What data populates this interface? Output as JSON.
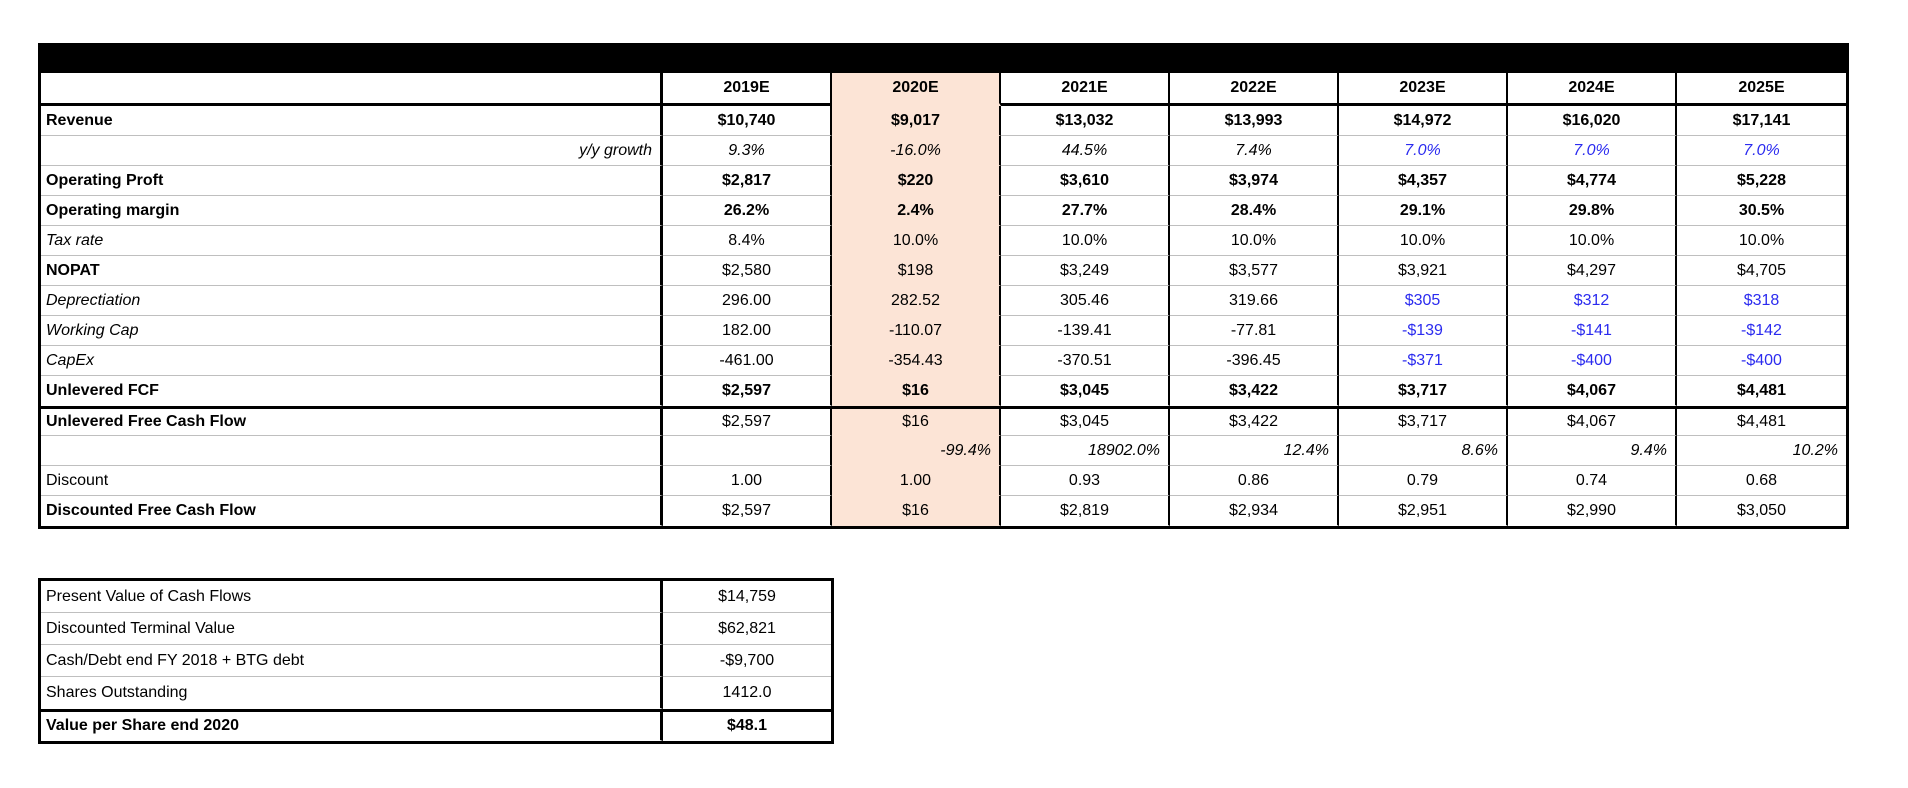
{
  "title_bar": {
    "text": ""
  },
  "colors": {
    "highlight_column_fill": "#FCE4D6",
    "assumption_text_blue": "#2B2BEF",
    "gridline_gray": "#BFBFBF",
    "border_black": "#000000"
  },
  "main_table": {
    "columns": [
      "2019E",
      "2020E",
      "2021E",
      "2022E",
      "2023E",
      "2024E",
      "2025E"
    ],
    "highlight_column": "2020E",
    "rows": [
      {
        "label": "Revenue",
        "values": [
          "$10,740",
          "$9,017",
          "$13,032",
          "$13,993",
          "$14,972",
          "$16,020",
          "$17,141"
        ],
        "styles": {
          "label": "bold",
          "values": "bold"
        }
      },
      {
        "label": "y/y growth",
        "values": [
          "9.3%",
          "-16.0%",
          "44.5%",
          "7.4%",
          "7.0%",
          "7.0%",
          "7.0%"
        ],
        "styles": {
          "label": "right-italic",
          "values": "italic",
          "blue_from": 4
        }
      },
      {
        "label": "Operating Proft",
        "values": [
          "$2,817",
          "$220",
          "$3,610",
          "$3,974",
          "$4,357",
          "$4,774",
          "$5,228"
        ],
        "styles": {
          "label": "bold",
          "values": "bold"
        }
      },
      {
        "label": "Operating margin",
        "values": [
          "26.2%",
          "2.4%",
          "27.7%",
          "28.4%",
          "29.1%",
          "29.8%",
          "30.5%"
        ],
        "styles": {
          "label": "bold",
          "values": "bold"
        }
      },
      {
        "label": "Tax rate",
        "values": [
          "8.4%",
          "10.0%",
          "10.0%",
          "10.0%",
          "10.0%",
          "10.0%",
          "10.0%"
        ],
        "styles": {
          "label": "italic",
          "values": "normal"
        }
      },
      {
        "label": "NOPAT",
        "values": [
          "$2,580",
          "$198",
          "$3,249",
          "$3,577",
          "$3,921",
          "$4,297",
          "$4,705"
        ],
        "styles": {
          "label": "bold",
          "values": "normal"
        }
      },
      {
        "label": "Deprectiation",
        "values": [
          "296.00",
          "282.52",
          "305.46",
          "319.66",
          "$305",
          "$312",
          "$318"
        ],
        "styles": {
          "label": "italic",
          "values": "normal",
          "blue_from": 4
        }
      },
      {
        "label": "Working Cap",
        "values": [
          "182.00",
          "-110.07",
          "-139.41",
          "-77.81",
          "-$139",
          "-$141",
          "-$142"
        ],
        "styles": {
          "label": "italic",
          "values": "normal",
          "blue_from": 4
        }
      },
      {
        "label": "CapEx",
        "values": [
          "-461.00",
          "-354.43",
          "-370.51",
          "-396.45",
          "-$371",
          "-$400",
          "-$400"
        ],
        "styles": {
          "label": "italic",
          "values": "normal",
          "blue_from": 4
        }
      },
      {
        "label": "Unlevered FCF",
        "values": [
          "$2,597",
          "$16",
          "$3,045",
          "$3,422",
          "$3,717",
          "$4,067",
          "$4,481"
        ],
        "styles": {
          "label": "bold",
          "values": "bold",
          "no_bottom": true
        }
      },
      {
        "label": "Unlevered Free Cash Flow",
        "values": [
          "$2,597",
          "$16",
          "$3,045",
          "$3,422",
          "$3,717",
          "$4,067",
          "$4,481"
        ],
        "styles": {
          "label": "bold",
          "values": "normal",
          "border_top": true
        }
      },
      {
        "label": "",
        "values": [
          "",
          "-99.4%",
          "18902.0%",
          "12.4%",
          "8.6%",
          "9.4%",
          "10.2%"
        ],
        "styles": {
          "label": "normal",
          "values": "right-italic"
        }
      },
      {
        "label": "Discount",
        "values": [
          "1.00",
          "1.00",
          "0.93",
          "0.86",
          "0.79",
          "0.74",
          "0.68"
        ],
        "styles": {
          "label": "normal",
          "values": "normal"
        }
      },
      {
        "label": "Discounted Free Cash Flow",
        "values": [
          "$2,597",
          "$16",
          "$2,819",
          "$2,934",
          "$2,951",
          "$2,990",
          "$3,050"
        ],
        "styles": {
          "label": "bold",
          "values": "normal",
          "no_bottom": true
        }
      }
    ]
  },
  "summary_table": {
    "rows": [
      {
        "label": "Present Value of Cash Flows",
        "value": "$14,759"
      },
      {
        "label": "Discounted Terminal Value",
        "value": "$62,821"
      },
      {
        "label": "Cash/Debt end FY 2018 + BTG debt",
        "value": "-$9,700"
      },
      {
        "label": "Shares Outstanding",
        "value": "1412.0",
        "no_bottom": true
      },
      {
        "label": "Value per Share end 2020",
        "value": "$48.1",
        "bold": true,
        "border_top": true,
        "no_bottom": true
      }
    ]
  }
}
